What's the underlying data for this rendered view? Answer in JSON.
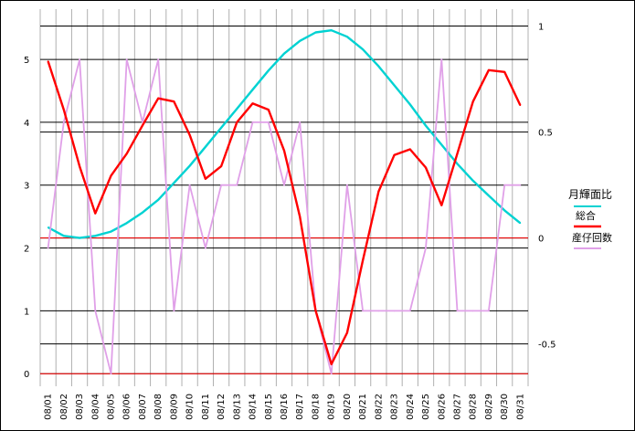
{
  "chart_data": {
    "type": "line",
    "categories": [
      "08/01",
      "08/02",
      "08/03",
      "08/04",
      "08/05",
      "08/06",
      "08/07",
      "08/08",
      "08/09",
      "08/10",
      "08/11",
      "08/12",
      "08/13",
      "08/14",
      "08/15",
      "08/16",
      "08/17",
      "08/18",
      "08/19",
      "08/20",
      "08/21",
      "08/22",
      "08/23",
      "08/24",
      "08/25",
      "08/26",
      "08/27",
      "08/28",
      "08/29",
      "08/30",
      "08/31"
    ],
    "left_axis": {
      "ylim": [
        -0.2,
        5.8
      ],
      "ticks": [
        0,
        1,
        2,
        3,
        4,
        5
      ]
    },
    "right_axis": {
      "ylim": [
        -0.7,
        1.08
      ],
      "ticks": [
        {
          "value": -0.5,
          "label": "-0.5"
        },
        {
          "value": 0,
          "label": "0"
        },
        {
          "value": 0.5,
          "label": "0.5"
        },
        {
          "value": 1,
          "label": "1"
        }
      ]
    },
    "grid": true,
    "legend_title": "月輝面比",
    "legend_position": "right",
    "series": [
      {
        "name": "総合",
        "axis": "left",
        "color": "#ff0000",
        "values": [
          4.97,
          4.2,
          3.3,
          2.55,
          3.15,
          3.5,
          3.95,
          4.38,
          4.33,
          3.8,
          3.1,
          3.3,
          4.0,
          4.3,
          4.2,
          3.55,
          2.5,
          1.0,
          0.15,
          0.65,
          1.8,
          2.9,
          3.48,
          3.57,
          3.28,
          2.68,
          3.5,
          4.33,
          4.83,
          4.8,
          4.27
        ]
      },
      {
        "name": "産仔回数",
        "axis": "left",
        "color": "#e0a0e8",
        "values": [
          2,
          4,
          5,
          1,
          0,
          5,
          4,
          5,
          1,
          3,
          2,
          3,
          3,
          4,
          4,
          3,
          4,
          1,
          0,
          3,
          1,
          1,
          1,
          1,
          2,
          5,
          1,
          1,
          1,
          3,
          3
        ]
      },
      {
        "axis": "right",
        "color": "#00d2d2",
        "values": [
          0.05,
          0.01,
          0.0,
          0.01,
          0.03,
          0.07,
          0.12,
          0.18,
          0.26,
          0.34,
          0.43,
          0.52,
          0.61,
          0.7,
          0.79,
          0.87,
          0.93,
          0.97,
          0.98,
          0.95,
          0.89,
          0.81,
          0.72,
          0.63,
          0.53,
          0.44,
          0.35,
          0.27,
          0.2,
          0.13,
          0.07
        ]
      }
    ]
  }
}
